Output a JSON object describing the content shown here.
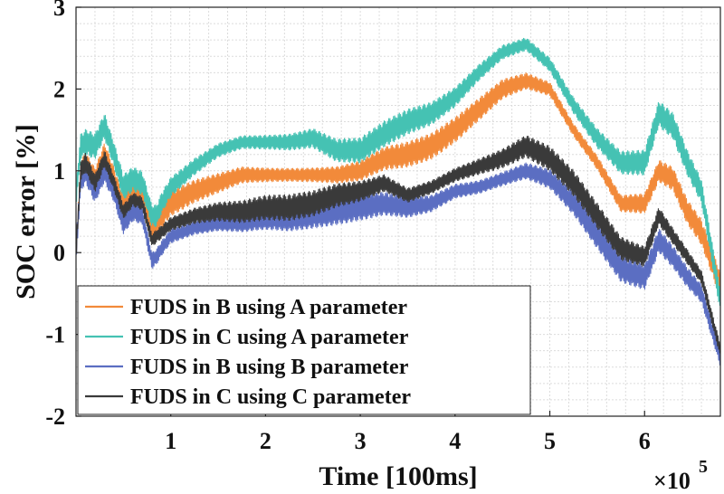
{
  "chart_data": {
    "type": "line",
    "title": "",
    "xlabel": "Time [100ms]",
    "ylabel": "SOC error [%]",
    "x_exponent_label": "×10",
    "x_exponent_power": "5",
    "xlim": [
      0,
      6.8
    ],
    "ylim": [
      -2,
      3
    ],
    "xticks": [
      1,
      2,
      3,
      4,
      5,
      6
    ],
    "xtick_labels": [
      "1",
      "2",
      "3",
      "4",
      "5",
      "6"
    ],
    "yticks": [
      -2,
      -1,
      0,
      1,
      2,
      3
    ],
    "ytick_labels": [
      "-2",
      "-1",
      "0",
      "1",
      "2",
      "3"
    ],
    "grid": true,
    "legend_position": "bottom-left",
    "x": [
      0,
      0.05,
      0.1,
      0.2,
      0.3,
      0.4,
      0.5,
      0.6,
      0.7,
      0.8,
      0.85,
      0.9,
      1.0,
      1.25,
      1.5,
      1.75,
      2.0,
      2.25,
      2.5,
      2.75,
      3.0,
      3.25,
      3.5,
      3.75,
      4.0,
      4.25,
      4.5,
      4.75,
      5.0,
      5.25,
      5.5,
      5.75,
      6.0,
      6.15,
      6.3,
      6.45,
      6.6,
      6.8
    ],
    "series": [
      {
        "name": "FUDS in B using A parameter",
        "color": "#f28a3a",
        "values": [
          0,
          1.0,
          1.1,
          0.9,
          1.2,
          0.9,
          0.55,
          0.75,
          0.7,
          0.3,
          0.35,
          0.45,
          0.6,
          0.75,
          0.85,
          0.95,
          0.95,
          0.95,
          0.95,
          0.95,
          1.0,
          1.15,
          1.2,
          1.3,
          1.5,
          1.75,
          2.0,
          2.1,
          2.0,
          1.5,
          1.1,
          0.6,
          0.6,
          1.0,
          0.9,
          0.5,
          0.25,
          -0.4
        ]
      },
      {
        "name": "FUDS in C using A parameter",
        "color": "#45c2b3",
        "values": [
          0.7,
          1.3,
          1.35,
          1.3,
          1.55,
          1.2,
          0.8,
          0.9,
          0.85,
          0.45,
          0.45,
          0.6,
          0.8,
          1.05,
          1.25,
          1.35,
          1.35,
          1.35,
          1.4,
          1.25,
          1.25,
          1.45,
          1.6,
          1.7,
          1.9,
          2.2,
          2.45,
          2.55,
          2.3,
          1.8,
          1.4,
          1.1,
          1.1,
          1.7,
          1.55,
          1.1,
          0.75,
          -0.6
        ]
      },
      {
        "name": "FUDS in B using B parameter",
        "color": "#5b6ec2",
        "values": [
          0,
          0.9,
          1.0,
          0.75,
          1.0,
          0.75,
          0.35,
          0.5,
          0.45,
          -0.1,
          -0.05,
          0.05,
          0.2,
          0.3,
          0.35,
          0.35,
          0.4,
          0.4,
          0.45,
          0.5,
          0.55,
          0.6,
          0.55,
          0.6,
          0.75,
          0.8,
          0.9,
          1.0,
          0.9,
          0.6,
          0.2,
          -0.2,
          -0.3,
          0.15,
          -0.05,
          -0.3,
          -0.5,
          -1.3
        ]
      },
      {
        "name": "FUDS in C using C parameter",
        "color": "#3a3a3a",
        "values": [
          0,
          1.0,
          1.1,
          0.85,
          1.15,
          0.85,
          0.5,
          0.65,
          0.6,
          0.15,
          0.2,
          0.25,
          0.35,
          0.45,
          0.5,
          0.5,
          0.55,
          0.55,
          0.6,
          0.7,
          0.75,
          0.85,
          0.7,
          0.8,
          0.95,
          1.05,
          1.15,
          1.3,
          1.15,
          0.85,
          0.45,
          0.05,
          -0.05,
          0.45,
          0.2,
          -0.05,
          -0.3,
          -1.2
        ]
      }
    ]
  }
}
